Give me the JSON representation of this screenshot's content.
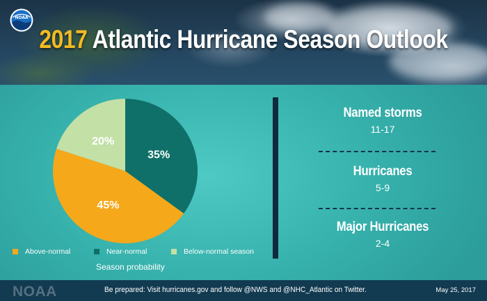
{
  "header": {
    "logo_text": "NOAA",
    "title_year": "2017",
    "title_rest": "Atlantic Hurricane Season Outlook"
  },
  "chart_data": {
    "type": "pie",
    "title": "",
    "slices": [
      {
        "label": "Near-normal",
        "value": 35,
        "display": "35%",
        "color": "#0f7069"
      },
      {
        "label": "Above-normal",
        "value": 45,
        "display": "45%",
        "color": "#f5a81a"
      },
      {
        "label": "Below-normal season",
        "value": 20,
        "display": "20%",
        "color": "#c3e0a6"
      }
    ],
    "legend_order": [
      "Above-normal",
      "Near-normal",
      "Below-normal season"
    ],
    "legend_placement": "bottom",
    "caption": "Season probability"
  },
  "stats": [
    {
      "label": "Named storms",
      "value": "11-17"
    },
    {
      "label": "Hurricanes",
      "value": "5-9"
    },
    {
      "label": "Major Hurricanes",
      "value": "2-4"
    }
  ],
  "footer": {
    "logo": "NOAA",
    "text": "Be prepared: Visit hurricanes.gov and follow @NWS and @NHC_Atlantic on Twitter.",
    "date": "May 25, 2017"
  },
  "colors": {
    "accent_yellow": "#f3ba22",
    "panel_teal": "#37b2ad",
    "dark_navy": "#0f2a3d",
    "footer_bg": "#123a50"
  }
}
